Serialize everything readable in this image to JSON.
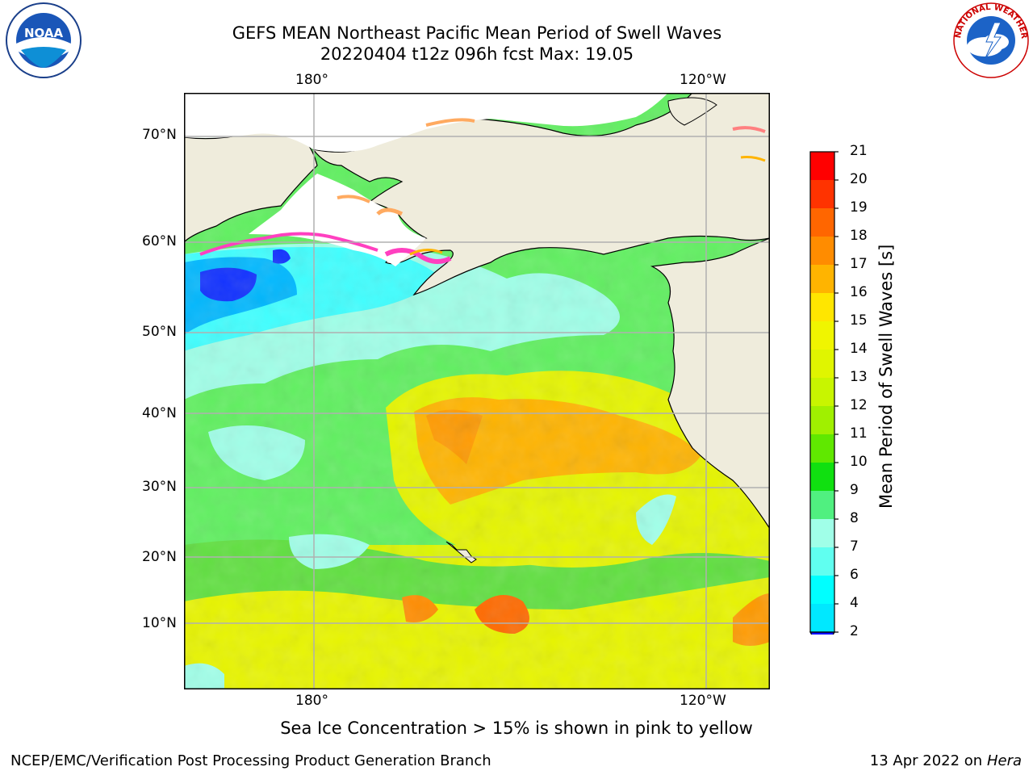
{
  "header": {
    "title_line1": "GEFS MEAN Northeast Pacific Mean Period of Swell Waves",
    "title_line2": "20220404 t12z 096h fcst   Max: 19.05"
  },
  "logos": {
    "left": {
      "icon": "noaa-logo-icon",
      "text": "NOAA"
    },
    "right": {
      "icon": "national-weather-service-logo-icon",
      "text": "NATIONAL WEATHER SERVICE"
    }
  },
  "map": {
    "lon_labels_top": [
      "180°",
      "120°W"
    ],
    "lon_labels_bottom": [
      "180°",
      "120°W"
    ],
    "lat_labels": [
      "70°N",
      "60°N",
      "50°N",
      "40°N",
      "30°N",
      "20°N",
      "10°N"
    ],
    "land_color": "#efecdc",
    "grid_color": "#b0b0b0"
  },
  "colorbar": {
    "label": "Mean Period of Swell Waves [s]",
    "ticks": [
      "21",
      "20",
      "19",
      "18",
      "17",
      "16",
      "15",
      "14",
      "13",
      "12",
      "11",
      "10",
      "9",
      "8",
      "7",
      "6",
      "4",
      "2"
    ],
    "colors": [
      "#ff0000",
      "#ff3300",
      "#ff6600",
      "#ff8c00",
      "#ffb400",
      "#ffe600",
      "#f0f500",
      "#e0f500",
      "#c8f500",
      "#a0f000",
      "#60e800",
      "#10e010",
      "#50f080",
      "#a0ffe8",
      "#60fff0",
      "#00ffff",
      "#00e8ff",
      "#0080ff"
    ],
    "extend_color": "#1010ff"
  },
  "annotation": "Sea Ice Concentration > 15% is shown in pink to yellow",
  "footer": {
    "left": "NCEP/EMC/Verification Post Processing Product Generation Branch",
    "right_date": "13 Apr 2022 on ",
    "right_host": "Hera"
  }
}
